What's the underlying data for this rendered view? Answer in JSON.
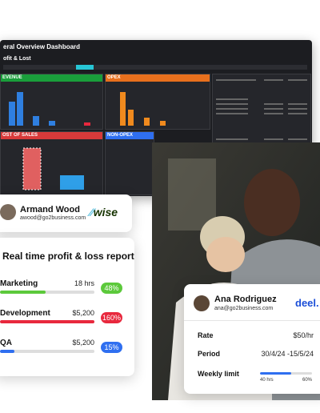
{
  "dashboard": {
    "title": "eral Overview Dashboard",
    "subtitle": "ofit & Lost",
    "tiles": [
      "EVENUE",
      "OPEX",
      "OST OF SALES",
      "NON-OPEX"
    ]
  },
  "contact_card": {
    "name": "Armand Wood",
    "email": "awood@go2business.com",
    "brand": "wise"
  },
  "report": {
    "title": "Real time profit & loss report",
    "rows": [
      {
        "name": "Marketing",
        "amount": "18 hrs",
        "progress": {
          "value": 48,
          "label": "48%"
        },
        "color": "#5cc93b"
      },
      {
        "name": "Development",
        "amount": "$5,200",
        "progress": {
          "value": 160,
          "label": "160%"
        },
        "color": "#e8283d"
      },
      {
        "name": "QA",
        "amount": "$5,200",
        "progress": {
          "value": 15,
          "label": "15%"
        },
        "color": "#2f6ff0"
      }
    ]
  },
  "contract_card": {
    "name": "Ana Rodriguez",
    "email": "ana@go2business.com",
    "brand": "deel.",
    "fields": [
      {
        "label": "Rate",
        "value": "$50/hr"
      },
      {
        "label": "Period",
        "value": "30/4/24 -15/5/24"
      }
    ],
    "limit": {
      "label": "Weekly limit",
      "used": "40 hrs",
      "progress": {
        "value": 60,
        "label": "60%"
      }
    }
  }
}
